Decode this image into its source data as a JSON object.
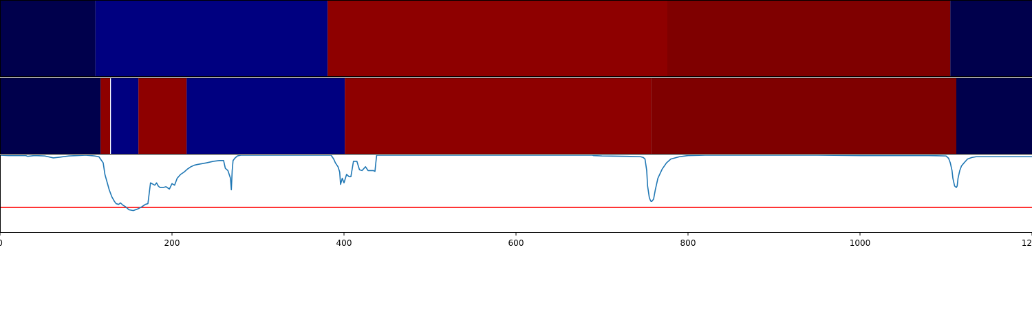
{
  "chart_data": [
    {
      "type": "heatmap",
      "name": "segmentation-band-1",
      "x_range": [
        0,
        1200
      ],
      "segments": [
        {
          "start": 0,
          "end": 111,
          "color": "#00004c"
        },
        {
          "start": 111,
          "end": 381,
          "color": "#000080"
        },
        {
          "start": 381,
          "end": 776,
          "color": "#8e0000"
        },
        {
          "start": 776,
          "end": 1105,
          "color": "#7f0000"
        },
        {
          "start": 1105,
          "end": 1200,
          "color": "#00004c"
        }
      ]
    },
    {
      "type": "heatmap",
      "name": "segmentation-band-2",
      "x_range": [
        0,
        1200
      ],
      "segments": [
        {
          "start": 0,
          "end": 117,
          "color": "#00004c"
        },
        {
          "start": 117,
          "end": 128,
          "color": "#8e0000"
        },
        {
          "start": 128,
          "end": 129,
          "color": "#ffffff"
        },
        {
          "start": 129,
          "end": 161,
          "color": "#000080"
        },
        {
          "start": 161,
          "end": 217,
          "color": "#8e0000"
        },
        {
          "start": 217,
          "end": 401,
          "color": "#000080"
        },
        {
          "start": 401,
          "end": 757,
          "color": "#8e0000"
        },
        {
          "start": 757,
          "end": 1112,
          "color": "#7f0000"
        },
        {
          "start": 1112,
          "end": 1200,
          "color": "#00004c"
        }
      ]
    },
    {
      "type": "line",
      "name": "signal",
      "xlim": [
        0,
        1200
      ],
      "ylim": [
        0.0,
        1.0
      ],
      "line_color": "#1f77b4",
      "threshold": {
        "y": 0.32,
        "color": "#ff0000"
      },
      "x": [
        0,
        10,
        30,
        32,
        40,
        52,
        56,
        62,
        70,
        80,
        90,
        100,
        110,
        115,
        120,
        122,
        127,
        130,
        133,
        135,
        138,
        140,
        143,
        146,
        150,
        155,
        160,
        165,
        169,
        172,
        175,
        180,
        182,
        184,
        186,
        190,
        193,
        197,
        200,
        203,
        206,
        210,
        214,
        218,
        222,
        226,
        230,
        235,
        240,
        248,
        255,
        260,
        262,
        265,
        268,
        269,
        270,
        271,
        273,
        276,
        280,
        284,
        290,
        300,
        320,
        340,
        360,
        385,
        388,
        390,
        393,
        395,
        396,
        398,
        400,
        403,
        406,
        408,
        411,
        415,
        418,
        421,
        425,
        428,
        432,
        434,
        436,
        437,
        438,
        440,
        445,
        460,
        480,
        500,
        550,
        600,
        650,
        689,
        690,
        700,
        730,
        745,
        748,
        750,
        752,
        753,
        755,
        756,
        757,
        758,
        760,
        762,
        765,
        770,
        775,
        780,
        790,
        800,
        820,
        850,
        900,
        950,
        1000,
        1050,
        1080,
        1100,
        1103,
        1105,
        1107,
        1108,
        1110,
        1112,
        1113,
        1114,
        1116,
        1118,
        1121,
        1125,
        1130,
        1135,
        1140,
        1160,
        1180,
        1200
      ],
      "y": [
        1.0,
        0.995,
        0.995,
        0.985,
        0.995,
        0.99,
        0.98,
        0.965,
        0.975,
        0.99,
        0.995,
        1.0,
        0.99,
        0.98,
        0.9,
        0.75,
        0.55,
        0.46,
        0.4,
        0.37,
        0.36,
        0.38,
        0.35,
        0.33,
        0.29,
        0.28,
        0.3,
        0.33,
        0.36,
        0.37,
        0.64,
        0.61,
        0.64,
        0.6,
        0.58,
        0.58,
        0.59,
        0.56,
        0.63,
        0.61,
        0.7,
        0.75,
        0.78,
        0.82,
        0.85,
        0.87,
        0.88,
        0.89,
        0.9,
        0.92,
        0.93,
        0.93,
        0.83,
        0.8,
        0.7,
        0.55,
        0.8,
        0.93,
        0.96,
        0.99,
        1.0,
        1.0,
        1.0,
        1.0,
        1.0,
        1.0,
        1.0,
        1.0,
        0.95,
        0.9,
        0.85,
        0.78,
        0.62,
        0.7,
        0.64,
        0.75,
        0.72,
        0.72,
        0.92,
        0.92,
        0.81,
        0.8,
        0.85,
        0.8,
        0.8,
        0.8,
        0.79,
        0.9,
        1.0,
        1.0,
        1.0,
        1.0,
        1.0,
        1.0,
        1.0,
        1.0,
        1.0,
        1.0,
        0.995,
        0.99,
        0.985,
        0.98,
        0.97,
        0.95,
        0.8,
        0.6,
        0.45,
        0.42,
        0.4,
        0.4,
        0.43,
        0.55,
        0.7,
        0.82,
        0.9,
        0.95,
        0.98,
        0.995,
        1.0,
        1.0,
        1.0,
        1.0,
        0.995,
        0.995,
        0.995,
        0.99,
        0.96,
        0.9,
        0.8,
        0.7,
        0.6,
        0.58,
        0.6,
        0.7,
        0.8,
        0.86,
        0.9,
        0.95,
        0.97,
        0.98,
        0.98,
        0.98,
        0.98,
        0.98
      ],
      "xticks": [
        0,
        200,
        400,
        600,
        800,
        1000,
        1200
      ],
      "xtick_labels": [
        "0",
        "200",
        "400",
        "600",
        "800",
        "1000",
        "1200"
      ]
    }
  ]
}
